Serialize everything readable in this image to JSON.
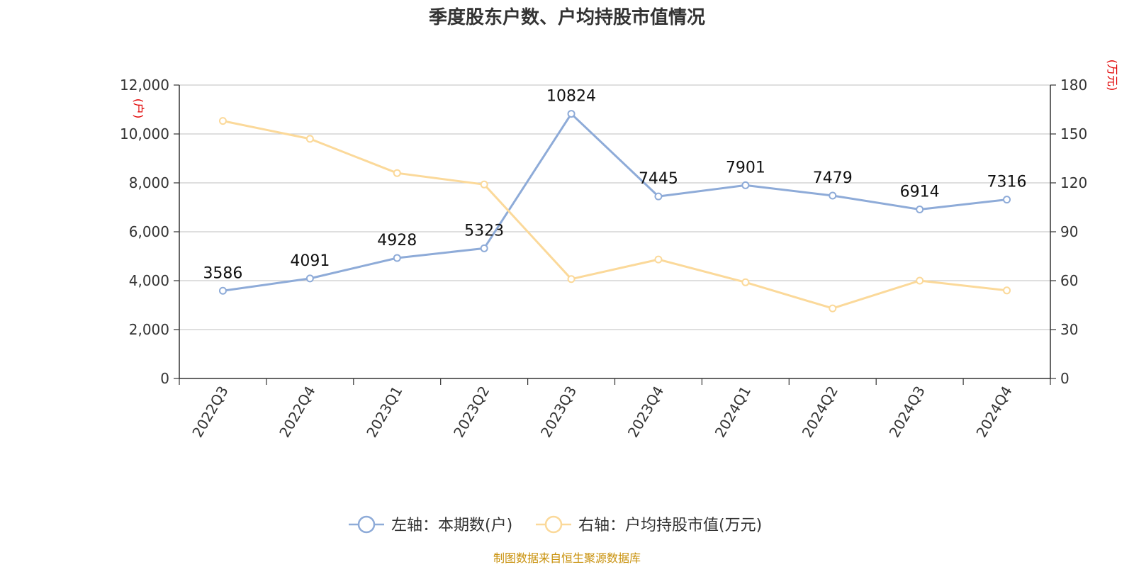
{
  "chart_data": {
    "type": "line",
    "title": "季度股东户数、户均持股市值情况",
    "categories": [
      "2022Q3",
      "2022Q4",
      "2023Q1",
      "2023Q2",
      "2023Q3",
      "2023Q4",
      "2024Q1",
      "2024Q2",
      "2024Q3",
      "2024Q4"
    ],
    "left_axis": {
      "unit": "(户)",
      "ylim": [
        0,
        12000
      ],
      "ticks": [
        "0",
        "2,000",
        "4,000",
        "6,000",
        "8,000",
        "10,000",
        "12,000"
      ]
    },
    "right_axis": {
      "unit": "(万元)",
      "ylim": [
        0,
        180
      ],
      "ticks": [
        "0",
        "30",
        "60",
        "90",
        "120",
        "150",
        "180"
      ]
    },
    "grid": true,
    "legend_position": "bottom",
    "series": [
      {
        "name": "左轴：本期数(户)",
        "axis": "left",
        "color": "#8eabd8",
        "values": [
          3586,
          4091,
          4928,
          5323,
          10824,
          7445,
          7901,
          7479,
          6914,
          7316
        ],
        "labels": [
          "3586",
          "4091",
          "4928",
          "5323",
          "10824",
          "7445",
          "7901",
          "7479",
          "6914",
          "7316"
        ]
      },
      {
        "name": "右轴：户均持股市值(万元)",
        "axis": "right",
        "color": "#fbd99a",
        "values": [
          158,
          147,
          126,
          119,
          61,
          73,
          59,
          43,
          60,
          54
        ]
      }
    ],
    "source": "制图数据来自恒生聚源数据库"
  }
}
